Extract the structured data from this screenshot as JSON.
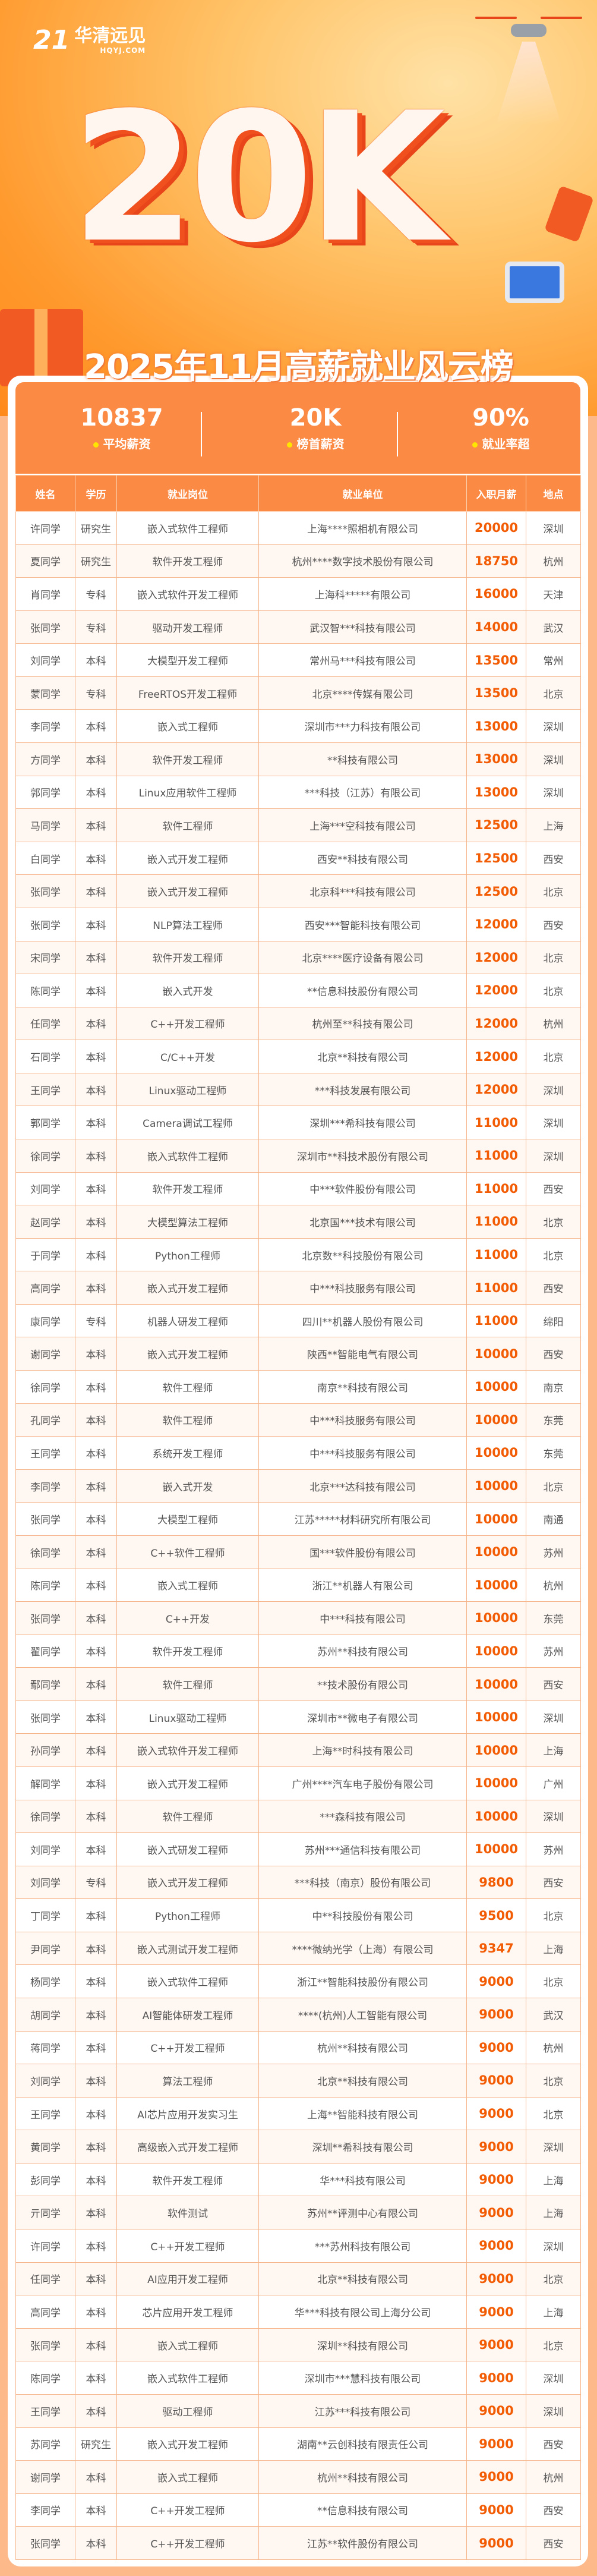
{
  "logo": {
    "number": "21",
    "name": "华清远见",
    "domain": "HQYJ.COM"
  },
  "hero": {
    "headline": "20K"
  },
  "title": "2025年11月高薪就业风云榜",
  "stats": [
    {
      "value": "10837",
      "label": "平均薪资"
    },
    {
      "value": "20K",
      "label": "榜首薪资"
    },
    {
      "value": "90%",
      "label": "就业率超"
    }
  ],
  "colors": {
    "accent": "#fb8a45",
    "salary": "#f25c05",
    "background": "#fdb98a",
    "dot": "#ffe500"
  },
  "table": {
    "headers": [
      "姓名",
      "学历",
      "就业岗位",
      "就业单位",
      "入职月薪",
      "地点"
    ],
    "rows": [
      [
        "许同学",
        "研究生",
        "嵌入式软件工程师",
        "上海****照相机有限公司",
        "20000",
        "深圳"
      ],
      [
        "夏同学",
        "研究生",
        "软件开发工程师",
        "杭州****数字技术股份有限公司",
        "18750",
        "杭州"
      ],
      [
        "肖同学",
        "专科",
        "嵌入式软件开发工程师",
        "上海科*****有限公司",
        "16000",
        "天津"
      ],
      [
        "张同学",
        "专科",
        "驱动开发工程师",
        "武汉智***科技有限公司",
        "14000",
        "武汉"
      ],
      [
        "刘同学",
        "本科",
        "大模型开发工程师",
        "常州马***科技有限公司",
        "13500",
        "常州"
      ],
      [
        "蒙同学",
        "专科",
        "FreeRTOS开发工程师",
        "北京****传媒有限公司",
        "13500",
        "北京"
      ],
      [
        "李同学",
        "本科",
        "嵌入式工程师",
        "深圳市***力科技有限公司",
        "13000",
        "深圳"
      ],
      [
        "方同学",
        "本科",
        "软件开发工程师",
        "**科技有限公司",
        "13000",
        "深圳"
      ],
      [
        "郭同学",
        "本科",
        "Linux应用软件工程师",
        "***科技（江苏）有限公司",
        "13000",
        "深圳"
      ],
      [
        "马同学",
        "本科",
        "软件工程师",
        "上海***空科技有限公司",
        "12500",
        "上海"
      ],
      [
        "白同学",
        "本科",
        "嵌入式开发工程师",
        "西安**科技有限公司",
        "12500",
        "西安"
      ],
      [
        "张同学",
        "本科",
        "嵌入式开发工程师",
        "北京科***科技有限公司",
        "12500",
        "北京"
      ],
      [
        "张同学",
        "本科",
        "NLP算法工程师",
        "西安***智能科技有限公司",
        "12000",
        "西安"
      ],
      [
        "宋同学",
        "本科",
        "软件开发工程师",
        "北京****医疗设备有限公司",
        "12000",
        "北京"
      ],
      [
        "陈同学",
        "本科",
        "嵌入式开发",
        "**信息科技股份有限公司",
        "12000",
        "北京"
      ],
      [
        "任同学",
        "本科",
        "C++开发工程师",
        "杭州至**科技有限公司",
        "12000",
        "杭州"
      ],
      [
        "石同学",
        "本科",
        "C/C++开发",
        "北京**科技有限公司",
        "12000",
        "北京"
      ],
      [
        "王同学",
        "本科",
        "Linux驱动工程师",
        "***科技发展有限公司",
        "12000",
        "深圳"
      ],
      [
        "郭同学",
        "本科",
        "Camera调试工程师",
        "深圳***希科技有限公司",
        "11000",
        "深圳"
      ],
      [
        "徐同学",
        "本科",
        "嵌入式软件工程师",
        "深圳市**科技术股份有限公司",
        "11000",
        "深圳"
      ],
      [
        "刘同学",
        "本科",
        "软件开发工程师",
        "中***软件股份有限公司",
        "11000",
        "西安"
      ],
      [
        "赵同学",
        "本科",
        "大模型算法工程师",
        "北京国***技术有限公司",
        "11000",
        "北京"
      ],
      [
        "于同学",
        "本科",
        "Python工程师",
        "北京数**科技股份有限公司",
        "11000",
        "北京"
      ],
      [
        "高同学",
        "本科",
        "嵌入式开发工程师",
        "中***科技服务有限公司",
        "11000",
        "西安"
      ],
      [
        "康同学",
        "专科",
        "机器人研发工程师",
        "四川**机器人股份有限公司",
        "11000",
        "绵阳"
      ],
      [
        "谢同学",
        "本科",
        "嵌入式开发工程师",
        "陕西**智能电气有限公司",
        "10000",
        "西安"
      ],
      [
        "徐同学",
        "本科",
        "软件工程师",
        "南京**科技有限公司",
        "10000",
        "南京"
      ],
      [
        "孔同学",
        "本科",
        "软件工程师",
        "中***科技服务有限公司",
        "10000",
        "东莞"
      ],
      [
        "王同学",
        "本科",
        "系统开发工程师",
        "中***科技服务有限公司",
        "10000",
        "东莞"
      ],
      [
        "李同学",
        "本科",
        "嵌入式开发",
        "北京***达科技有限公司",
        "10000",
        "北京"
      ],
      [
        "张同学",
        "本科",
        "大模型工程师",
        "江苏*****材料研究所有限公司",
        "10000",
        "南通"
      ],
      [
        "徐同学",
        "本科",
        "C++软件工程师",
        "国***软件股份有限公司",
        "10000",
        "苏州"
      ],
      [
        "陈同学",
        "本科",
        "嵌入式工程师",
        "浙江**机器人有限公司",
        "10000",
        "杭州"
      ],
      [
        "张同学",
        "本科",
        "C++开发",
        "中***科技有限公司",
        "10000",
        "东莞"
      ],
      [
        "翟同学",
        "本科",
        "软件开发工程师",
        "苏州**科技有限公司",
        "10000",
        "苏州"
      ],
      [
        "鄢同学",
        "本科",
        "软件工程师",
        "**技术股份有限公司",
        "10000",
        "西安"
      ],
      [
        "张同学",
        "本科",
        "Linux驱动工程师",
        "深圳市**微电子有限公司",
        "10000",
        "深圳"
      ],
      [
        "孙同学",
        "本科",
        "嵌入式软件开发工程师",
        "上海**时科技有限公司",
        "10000",
        "上海"
      ],
      [
        "解同学",
        "本科",
        "嵌入式开发工程师",
        "广州****汽车电子股份有限公司",
        "10000",
        "广州"
      ],
      [
        "徐同学",
        "本科",
        "软件工程师",
        "***森科技有限公司",
        "10000",
        "深圳"
      ],
      [
        "刘同学",
        "本科",
        "嵌入式研发工程师",
        "苏州***通信科技有限公司",
        "10000",
        "苏州"
      ],
      [
        "刘同学",
        "专科",
        "嵌入式开发工程师",
        "***科技（南京）股份有限公司",
        "9800",
        "西安"
      ],
      [
        "丁同学",
        "本科",
        "Python工程师",
        "中**科技股份有限公司",
        "9500",
        "北京"
      ],
      [
        "尹同学",
        "本科",
        "嵌入式测试开发工程师",
        "****微纳光学（上海）有限公司",
        "9347",
        "上海"
      ],
      [
        "杨同学",
        "本科",
        "嵌入式软件工程师",
        "浙江**智能科技股份有限公司",
        "9000",
        "北京"
      ],
      [
        "胡同学",
        "本科",
        "AI智能体研发工程师",
        "****(杭州)人工智能有限公司",
        "9000",
        "武汉"
      ],
      [
        "蒋同学",
        "本科",
        "C++开发工程师",
        "杭州**科技有限公司",
        "9000",
        "杭州"
      ],
      [
        "刘同学",
        "本科",
        "算法工程师",
        "北京**科技有限公司",
        "9000",
        "北京"
      ],
      [
        "王同学",
        "本科",
        "AI芯片应用开发实习生",
        "上海**智能科技有限公司",
        "9000",
        "北京"
      ],
      [
        "黄同学",
        "本科",
        "高级嵌入式开发工程师",
        "深圳**希科技有限公司",
        "9000",
        "深圳"
      ],
      [
        "彭同学",
        "本科",
        "软件开发工程师",
        "华***科技有限公司",
        "9000",
        "上海"
      ],
      [
        "亓同学",
        "本科",
        "软件测试",
        "苏州**评测中心有限公司",
        "9000",
        "上海"
      ],
      [
        "许同学",
        "本科",
        "C++开发工程师",
        "***苏州科技有限公司",
        "9000",
        "深圳"
      ],
      [
        "任同学",
        "本科",
        "AI应用开发工程师",
        "北京**科技有限公司",
        "9000",
        "北京"
      ],
      [
        "高同学",
        "本科",
        "芯片应用开发工程师",
        "华***科技有限公司上海分公司",
        "9000",
        "上海"
      ],
      [
        "张同学",
        "本科",
        "嵌入式工程师",
        "深圳**科技有限公司",
        "9000",
        "北京"
      ],
      [
        "陈同学",
        "本科",
        "嵌入式软件工程师",
        "深圳市***慧科技有限公司",
        "9000",
        "深圳"
      ],
      [
        "王同学",
        "本科",
        "驱动工程师",
        "江苏***科技有限公司",
        "9000",
        "深圳"
      ],
      [
        "苏同学",
        "研究生",
        "嵌入式开发工程师",
        "湖南**云创科技有限责任公司",
        "9000",
        "西安"
      ],
      [
        "谢同学",
        "本科",
        "嵌入式工程师",
        "杭州**科技有限公司",
        "9000",
        "杭州"
      ],
      [
        "李同学",
        "本科",
        "C++开发工程师",
        "**信息科技有限公司",
        "9000",
        "西安"
      ],
      [
        "张同学",
        "本科",
        "C++开发工程师",
        "江苏**软件股份有限公司",
        "9000",
        "西安"
      ]
    ]
  }
}
